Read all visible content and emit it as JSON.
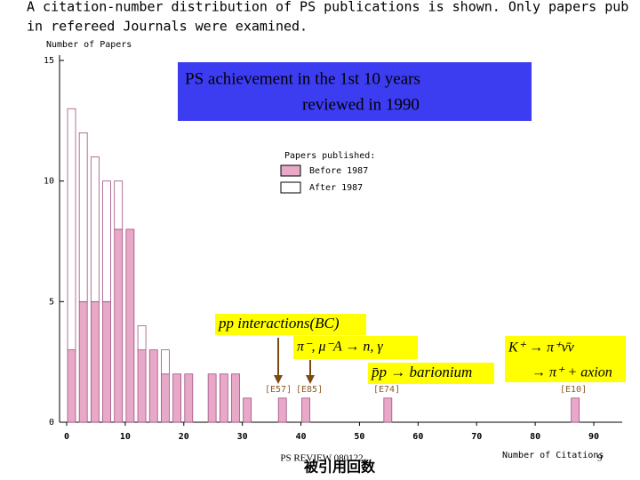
{
  "chart_data": {
    "type": "histogram",
    "caption": [
      "A citation-number distribution of PS publications is shown. Only papers pub",
      "in refereed Journals were examined."
    ],
    "title": "PS achievement in the 1st 10 years",
    "subtitle": "reviewed in 1990",
    "y_label": "Number of Papers",
    "x_label": "Number of Citations",
    "x_label_local": "被引用回数",
    "legend_title": "Papers published:",
    "x": [
      0,
      2,
      4,
      6,
      8,
      10,
      12,
      14,
      16,
      18,
      20,
      24,
      26,
      28,
      30,
      36,
      40,
      54,
      86
    ],
    "series": [
      {
        "name": "Before 1987",
        "color": "#e8a8c8",
        "values": [
          3,
          5,
          5,
          5,
          8,
          8,
          3,
          3,
          2,
          2,
          2,
          2,
          2,
          2,
          1,
          1,
          1,
          1,
          1
        ]
      },
      {
        "name": "After 1987",
        "color": "#ffffff",
        "values": [
          10,
          7,
          6,
          5,
          2,
          0,
          1,
          0,
          1,
          0,
          0,
          0,
          0,
          0,
          0,
          0,
          0,
          0,
          0
        ]
      }
    ],
    "xlim": [
      0,
      90
    ],
    "xticks": [
      0,
      10,
      20,
      30,
      40,
      50,
      60,
      70,
      80,
      90
    ],
    "ylim": [
      0,
      15
    ],
    "yticks": [
      0,
      5,
      10,
      15
    ],
    "experiment_labels": [
      "[E57]",
      "[E85]",
      "[E74]",
      "[E10]"
    ],
    "annotations": [
      "pp interactions(BC)",
      "π⁻, μ⁻A → n, γ",
      "p̄p → barionium",
      "K⁺ → π⁺ν̄ν",
      "→ π⁺ + axion"
    ],
    "footer": "PS REVIEW 080122",
    "page_number": "9"
  }
}
